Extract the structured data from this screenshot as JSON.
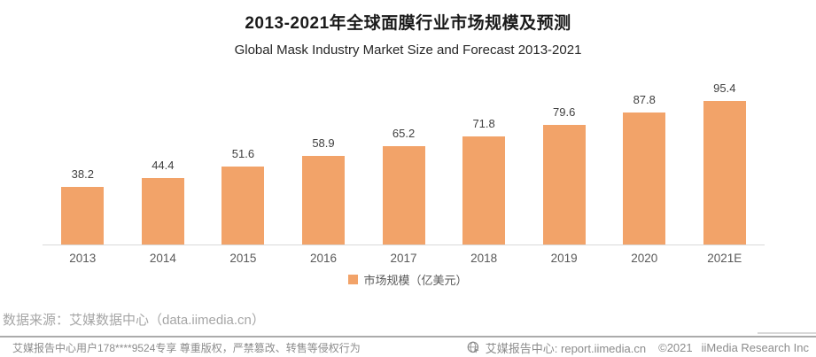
{
  "chart_data": {
    "type": "bar",
    "title": "2013-2021年全球面膜行业市场规模及预测",
    "subtitle": "Global Mask Industry Market Size and Forecast 2013-2021",
    "categories": [
      "2013",
      "2014",
      "2015",
      "2016",
      "2017",
      "2018",
      "2019",
      "2020",
      "2021E"
    ],
    "series": [
      {
        "name": "市场规模（亿美元）",
        "values": [
          38.2,
          44.4,
          51.6,
          58.9,
          65.2,
          71.8,
          79.6,
          87.8,
          95.4
        ]
      }
    ],
    "xlabel": "",
    "ylabel": "",
    "ylim": [
      0,
      100
    ],
    "grid": false,
    "legend_position": "bottom",
    "bar_color": "#F2A369",
    "value_labels": true,
    "value_label_decimals": 1
  },
  "source": {
    "text": "数据来源：艾媒数据中心（data.iimedia.cn）"
  },
  "footer": {
    "left_text": "艾媒报告中心用户178****9524专享 尊重版权，严禁篡改、转售等侵权行为",
    "brand_text": "艾媒报告中心: report.iimedia.cn",
    "copyright": "©2021",
    "company": "iiMedia Research Inc"
  },
  "icons": {
    "footer_brand": "globe-cursor-icon"
  },
  "colors": {
    "bar": "#F2A369",
    "axis_line": "#D9D9D9",
    "title_text": "#1a1a1a",
    "label_text": "#595959",
    "source_text": "#A6A6A6",
    "footer_text": "#8C8C8C",
    "divider": "#ABABAB"
  }
}
